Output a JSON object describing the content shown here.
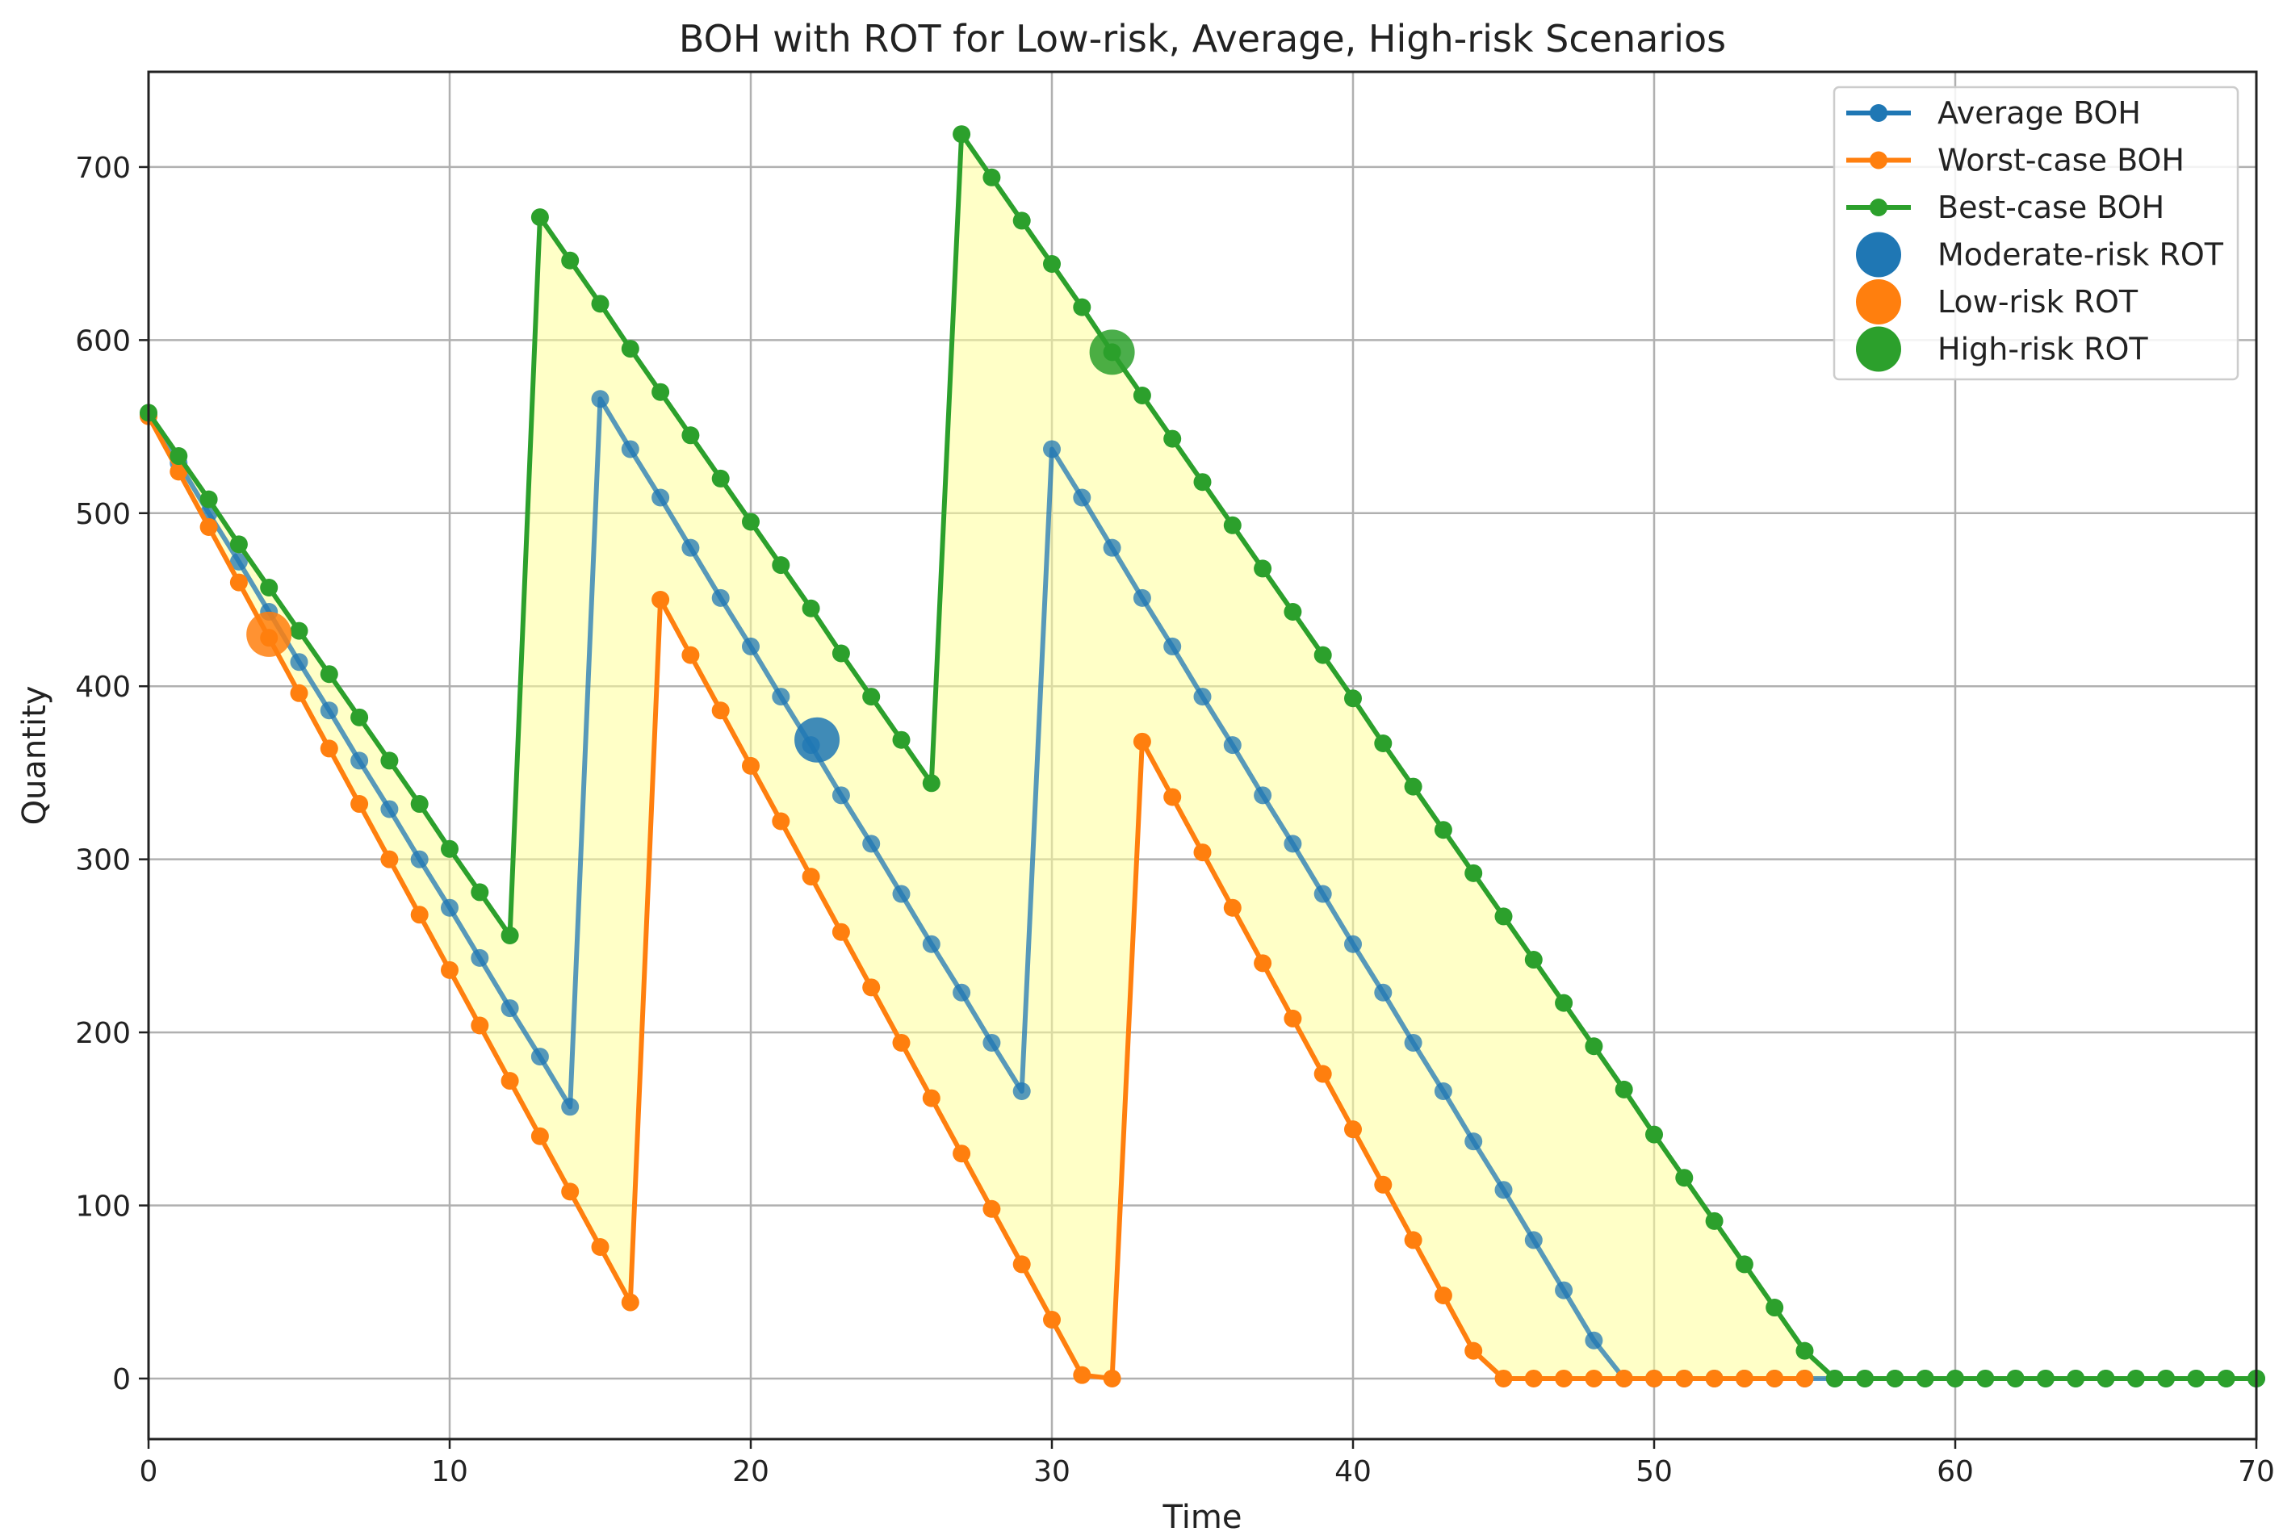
{
  "chart_data": {
    "type": "line",
    "title": "BOH with ROT for Low-risk, Average, High-risk Scenarios",
    "xlabel": "Time",
    "ylabel": "Quantity",
    "xlim": [
      0,
      70
    ],
    "ylim": [
      -35,
      755
    ],
    "xticks": [
      0,
      10,
      20,
      30,
      40,
      50,
      60,
      70
    ],
    "yticks": [
      0,
      100,
      200,
      300,
      400,
      500,
      600,
      700
    ],
    "grid": true,
    "legend_position": "top-right",
    "series": [
      {
        "name": "Average BOH",
        "color": "#1f77b4",
        "x": [
          0,
          1,
          2,
          3,
          4,
          5,
          6,
          7,
          8,
          9,
          10,
          11,
          12,
          13,
          14,
          15,
          16,
          17,
          18,
          19,
          20,
          21,
          22,
          23,
          24,
          25,
          26,
          27,
          28,
          29,
          30,
          31,
          32,
          33,
          34,
          35,
          36,
          37,
          38,
          39,
          40,
          41,
          42,
          43,
          44,
          45,
          46,
          47,
          48,
          49,
          50,
          51,
          52,
          53,
          54,
          55,
          56,
          57,
          58,
          59,
          60,
          61,
          62,
          63,
          64,
          65,
          66,
          67,
          68,
          69,
          70
        ],
        "y": [
          557,
          529,
          500,
          472,
          443,
          414,
          386,
          357,
          329,
          300,
          272,
          243,
          214,
          186,
          157,
          566,
          537,
          509,
          480,
          451,
          423,
          394,
          366,
          337,
          309,
          280,
          251,
          223,
          194,
          166,
          537,
          509,
          480,
          451,
          423,
          394,
          366,
          337,
          309,
          280,
          251,
          223,
          194,
          166,
          137,
          109,
          80,
          51,
          22,
          0,
          0,
          0,
          0,
          0,
          0,
          0,
          0,
          0,
          0,
          0,
          0,
          0,
          0,
          0,
          0,
          0,
          0,
          0,
          0,
          0,
          0
        ]
      },
      {
        "name": "Worst-case BOH",
        "color": "#ff7f0e",
        "x": [
          0,
          1,
          2,
          3,
          4,
          5,
          6,
          7,
          8,
          9,
          10,
          11,
          12,
          13,
          14,
          15,
          16,
          17,
          18,
          19,
          20,
          21,
          22,
          23,
          24,
          25,
          26,
          27,
          28,
          29,
          30,
          31,
          32,
          33,
          34,
          35,
          36,
          37,
          38,
          39,
          40,
          41,
          42,
          43,
          44,
          45,
          46,
          47,
          48,
          49,
          50,
          51,
          52,
          53,
          54,
          55
        ],
        "y": [
          556,
          524,
          492,
          460,
          428,
          396,
          364,
          332,
          300,
          268,
          236,
          204,
          172,
          140,
          108,
          76,
          44,
          450,
          418,
          386,
          354,
          322,
          290,
          258,
          226,
          194,
          162,
          130,
          98,
          66,
          34,
          2,
          0,
          368,
          336,
          304,
          272,
          240,
          208,
          176,
          144,
          112,
          80,
          48,
          16,
          0,
          0,
          0,
          0,
          0,
          0,
          0,
          0,
          0,
          0,
          0
        ]
      },
      {
        "name": "Best-case BOH",
        "color": "#2ca02c",
        "x": [
          0,
          1,
          2,
          3,
          4,
          5,
          6,
          7,
          8,
          9,
          10,
          11,
          12,
          13,
          14,
          15,
          16,
          17,
          18,
          19,
          20,
          21,
          22,
          23,
          24,
          25,
          26,
          27,
          28,
          29,
          30,
          31,
          32,
          33,
          34,
          35,
          36,
          37,
          38,
          39,
          40,
          41,
          42,
          43,
          44,
          45,
          46,
          47,
          48,
          49,
          50,
          51,
          52,
          53,
          54,
          55,
          56,
          57,
          58,
          59,
          60,
          61,
          62,
          63,
          64,
          65,
          66,
          67,
          68,
          69,
          70
        ],
        "y": [
          558,
          533,
          508,
          482,
          457,
          432,
          407,
          382,
          357,
          332,
          306,
          281,
          256,
          671,
          646,
          621,
          595,
          570,
          545,
          520,
          495,
          470,
          445,
          419,
          394,
          369,
          344,
          719,
          694,
          669,
          644,
          619,
          593,
          568,
          543,
          518,
          493,
          468,
          443,
          418,
          393,
          367,
          342,
          317,
          292,
          267,
          242,
          217,
          192,
          167,
          141,
          116,
          91,
          66,
          41,
          16,
          0,
          0,
          0,
          0,
          0,
          0,
          0,
          0,
          0,
          0,
          0,
          0,
          0,
          0,
          0
        ]
      }
    ],
    "rot_markers": [
      {
        "name": "Moderate-risk ROT",
        "color": "#1f77b4",
        "x": 22.2,
        "y": 369
      },
      {
        "name": "Low-risk ROT",
        "color": "#ff7f0e",
        "x": 4,
        "y": 430
      },
      {
        "name": "High-risk ROT",
        "color": "#2ca02c",
        "x": 32,
        "y": 593
      }
    ],
    "band": {
      "color": "#ffff99",
      "opacity": 0.55
    }
  }
}
